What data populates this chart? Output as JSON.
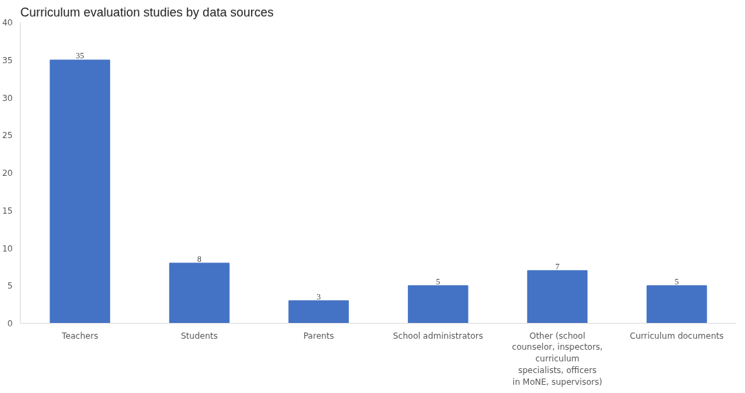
{
  "chart_data": {
    "type": "bar",
    "title": "Curriculum evaluation studies by data sources",
    "categories": [
      "Teachers",
      "Students",
      "Parents",
      "School administrators",
      "Other (school counselor, inspectors, curriculum specialists, officers in MoNE, supervisors)",
      "Curriculum documents"
    ],
    "values": [
      35,
      8,
      3,
      5,
      7,
      5
    ],
    "color": "#4472c4",
    "ylim": [
      0,
      40
    ],
    "yticks": [
      0,
      5,
      10,
      15,
      20,
      25,
      30,
      35,
      40
    ],
    "grid": false,
    "data_labels": true
  }
}
